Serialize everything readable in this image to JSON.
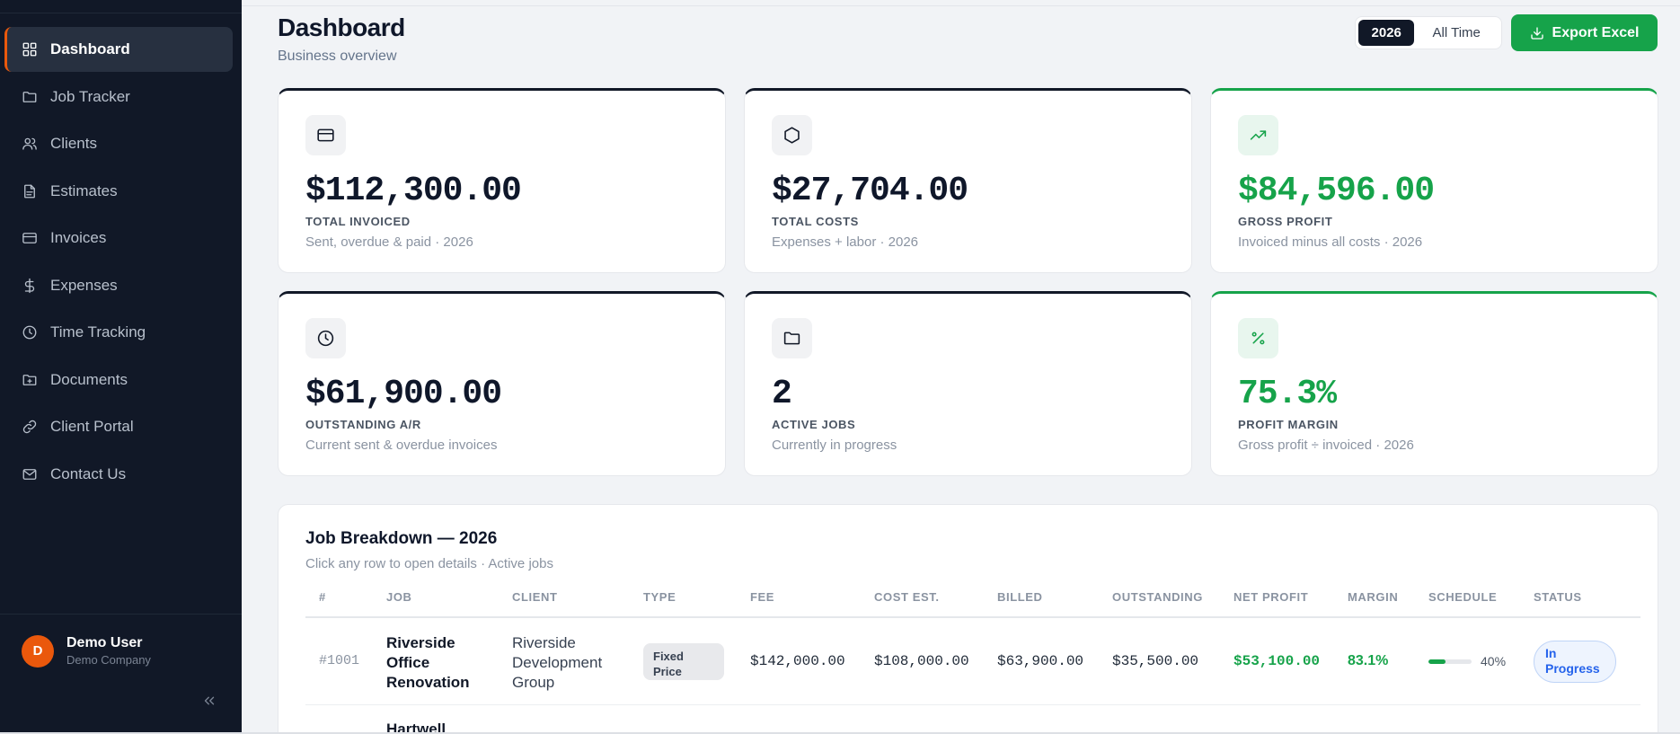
{
  "sidebar": {
    "items": [
      {
        "label": "Dashboard",
        "icon": "grid-icon"
      },
      {
        "label": "Job Tracker",
        "icon": "folder-icon"
      },
      {
        "label": "Clients",
        "icon": "users-icon"
      },
      {
        "label": "Estimates",
        "icon": "file-text-icon"
      },
      {
        "label": "Invoices",
        "icon": "credit-card-icon"
      },
      {
        "label": "Expenses",
        "icon": "dollar-icon"
      },
      {
        "label": "Time Tracking",
        "icon": "clock-icon"
      },
      {
        "label": "Documents",
        "icon": "folder-plus-icon"
      },
      {
        "label": "Client Portal",
        "icon": "link-icon"
      },
      {
        "label": "Contact Us",
        "icon": "mail-icon"
      }
    ],
    "active_index": 0,
    "user": {
      "initial": "D",
      "name": "Demo User",
      "company": "Demo Company"
    }
  },
  "header": {
    "title": "Dashboard",
    "subtitle": "Business overview",
    "range_options": [
      "2026",
      "All Time"
    ],
    "range_selected": "2026",
    "export_label": "Export Excel"
  },
  "stats": [
    {
      "value": "$112,300.00",
      "label": "TOTAL INVOICED",
      "sub": "Sent, overdue & paid · 2026",
      "icon": "credit-card-icon",
      "accent": "dark"
    },
    {
      "value": "$27,704.00",
      "label": "TOTAL COSTS",
      "sub": "Expenses + labor · 2026",
      "icon": "hexagon-icon",
      "accent": "dark"
    },
    {
      "value": "$84,596.00",
      "label": "GROSS PROFIT",
      "sub": "Invoiced minus all costs · 2026",
      "icon": "trending-up-icon",
      "accent": "green"
    },
    {
      "value": "$61,900.00",
      "label": "OUTSTANDING A/R",
      "sub": "Current sent & overdue invoices",
      "icon": "clock-icon",
      "accent": "dark"
    },
    {
      "value": "2",
      "label": "ACTIVE JOBS",
      "sub": "Currently in progress",
      "icon": "folder-icon",
      "accent": "dark"
    },
    {
      "value": "75.3%",
      "label": "PROFIT MARGIN",
      "sub": "Gross profit ÷ invoiced · 2026",
      "icon": "percent-icon",
      "accent": "green"
    }
  ],
  "breakdown": {
    "title": "Job Breakdown — 2026",
    "subtitle": "Click any row to open details · Active jobs",
    "columns": [
      "#",
      "JOB",
      "CLIENT",
      "TYPE",
      "FEE",
      "COST EST.",
      "BILLED",
      "OUTSTANDING",
      "NET PROFIT",
      "MARGIN",
      "SCHEDULE",
      "STATUS"
    ],
    "rows": [
      {
        "number": "#1001",
        "job": "Riverside Office Renovation",
        "client": "Riverside Development Group",
        "type": "Fixed Price",
        "fee": "$142,000.00",
        "cost_est": "$108,000.00",
        "billed": "$63,900.00",
        "outstanding": "$35,500.00",
        "net_profit": "$53,100.00",
        "margin": "83.1%",
        "schedule_percent": 40,
        "schedule_label": "40%",
        "status": "In Progress"
      },
      {
        "job_partial": "Hartwell"
      }
    ]
  },
  "colors": {
    "sidebar_bg": "#111827",
    "accent_orange": "#ea580c",
    "accent_green": "#16a34a",
    "status_blue": "#2563eb"
  }
}
